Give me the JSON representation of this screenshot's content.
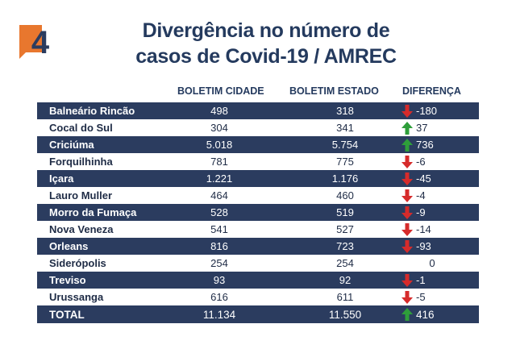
{
  "colors": {
    "dark_row": "#2b3c5f",
    "title": "#243a5e",
    "logo_orange": "#e8772e",
    "logo_navy": "#2b3c5f",
    "up": "#2e9e3a",
    "down": "#d62b2b"
  },
  "logo": {
    "text": "4"
  },
  "title": {
    "line1": "Divergência no número de",
    "line2": "casos de Covid-19 / AMREC"
  },
  "headers": {
    "cidade": "BOLETIM CIDADE",
    "estado": "BOLETIM ESTADO",
    "diferenca": "DIFERENÇA"
  },
  "rows": [
    {
      "city": "Balneário Rincão",
      "cidade": "498",
      "estado": "318",
      "diff": "-180",
      "trend": "down"
    },
    {
      "city": "Cocal do Sul",
      "cidade": "304",
      "estado": "341",
      "diff": "37",
      "trend": "up"
    },
    {
      "city": "Criciúma",
      "cidade": "5.018",
      "estado": "5.754",
      "diff": "736",
      "trend": "up"
    },
    {
      "city": "Forquilhinha",
      "cidade": "781",
      "estado": "775",
      "diff": "-6",
      "trend": "down"
    },
    {
      "city": "Içara",
      "cidade": "1.221",
      "estado": "1.176",
      "diff": "-45",
      "trend": "down"
    },
    {
      "city": "Lauro Muller",
      "cidade": "464",
      "estado": "460",
      "diff": "-4",
      "trend": "down"
    },
    {
      "city": "Morro da Fumaça",
      "cidade": "528",
      "estado": "519",
      "diff": "-9",
      "trend": "down"
    },
    {
      "city": "Nova Veneza",
      "cidade": "541",
      "estado": "527",
      "diff": "-14",
      "trend": "down"
    },
    {
      "city": "Orleans",
      "cidade": "816",
      "estado": "723",
      "diff": "-93",
      "trend": "down"
    },
    {
      "city": "Siderópolis",
      "cidade": "254",
      "estado": "254",
      "diff": "0",
      "trend": "none"
    },
    {
      "city": "Treviso",
      "cidade": "93",
      "estado": "92",
      "diff": "-1",
      "trend": "down"
    },
    {
      "city": "Urussanga",
      "cidade": "616",
      "estado": "611",
      "diff": "-5",
      "trend": "down"
    }
  ],
  "total": {
    "city": "TOTAL",
    "cidade": "11.134",
    "estado": "11.550",
    "diff": "416",
    "trend": "up"
  }
}
